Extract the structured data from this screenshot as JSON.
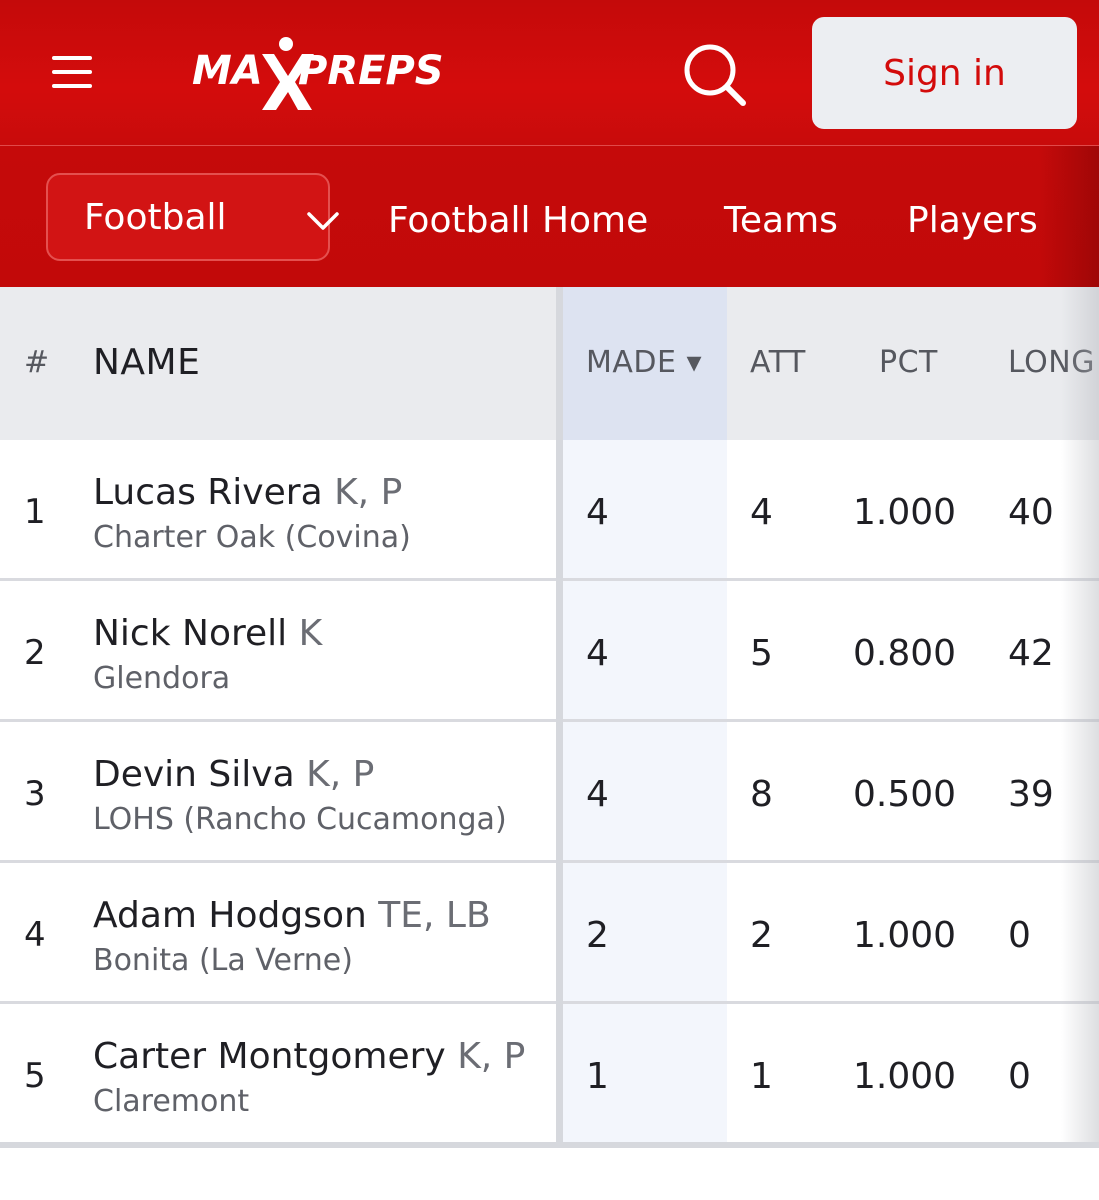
{
  "header": {
    "logo_text": "MAXPREPS",
    "signin_label": "Sign in"
  },
  "nav": {
    "sport": "Football",
    "links": [
      "Football Home",
      "Teams",
      "Players"
    ]
  },
  "table": {
    "columns": [
      "#",
      "NAME",
      "MADE ▾",
      "ATT",
      "PCT",
      "LONG"
    ],
    "sorted_column": "MADE",
    "rows": [
      {
        "rank": "1",
        "name": "Lucas Rivera",
        "pos": "K, P",
        "school": "Charter Oak (Covina)",
        "made": "4",
        "att": "4",
        "pct": "1.000",
        "long": "40"
      },
      {
        "rank": "2",
        "name": "Nick Norell",
        "pos": "K",
        "school": "Glendora",
        "made": "4",
        "att": "5",
        "pct": "0.800",
        "long": "42"
      },
      {
        "rank": "3",
        "name": "Devin Silva",
        "pos": "K, P",
        "school": "LOHS (Rancho Cucamonga)",
        "made": "4",
        "att": "8",
        "pct": "0.500",
        "long": "39"
      },
      {
        "rank": "4",
        "name": "Adam Hodgson",
        "pos": "TE, LB",
        "school": "Bonita (La Verne)",
        "made": "2",
        "att": "2",
        "pct": "1.000",
        "long": "0"
      },
      {
        "rank": "5",
        "name": "Carter Montgomery",
        "pos": "K, P",
        "school": "Claremont",
        "made": "1",
        "att": "1",
        "pct": "1.000",
        "long": "0"
      }
    ]
  },
  "colors": {
    "brand_red": "#cc0a0a",
    "signin_bg": "#eceef2",
    "sorted_column_bg": "#f3f6fc"
  }
}
